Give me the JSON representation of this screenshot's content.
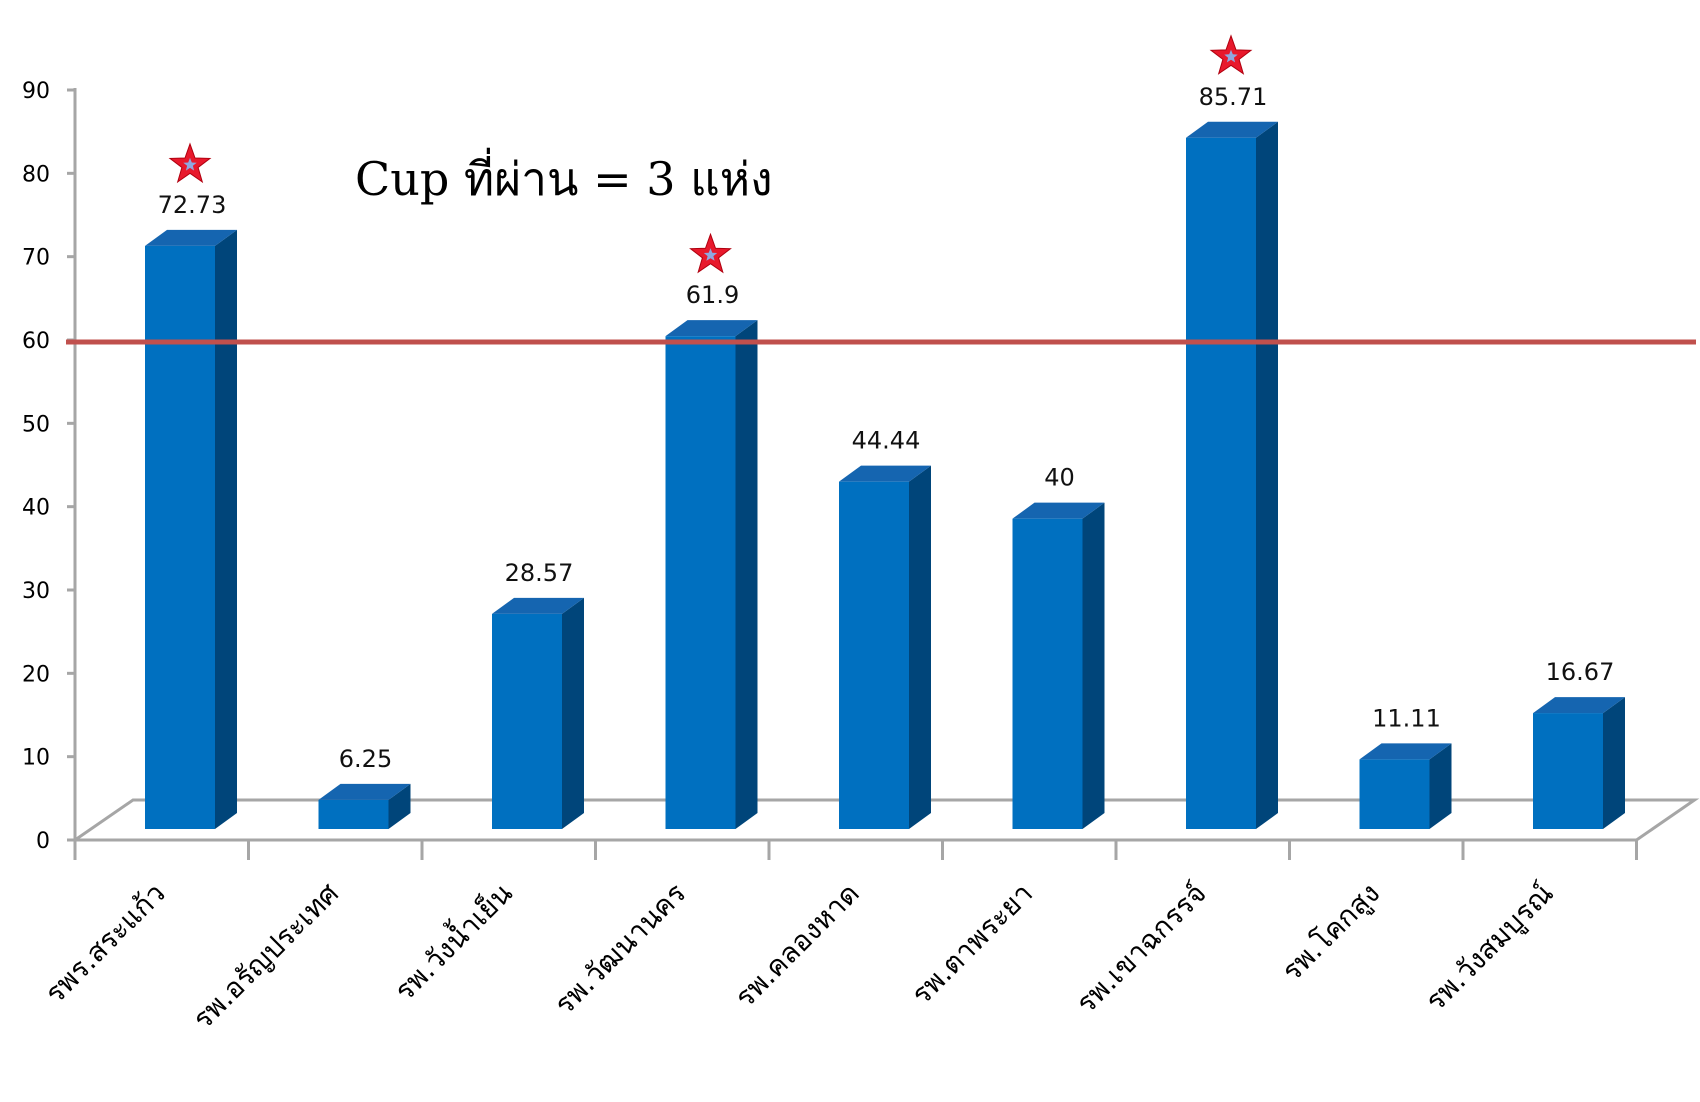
{
  "chart_data": {
    "type": "bar",
    "title": "",
    "xlabel": "",
    "ylabel": "",
    "categories": [
      "รพร.สระแก้ว",
      "รพ.อรัญประเทศ",
      "รพ.วังน้ำเย็น",
      "รพ.วัฒนานคร",
      "รพ.คลองหาด",
      "รพ.ตาพระยา",
      "รพ.เขาฉกรรจ์",
      "รพ.โคกสูง",
      "รพ.วังสมบูรณ์"
    ],
    "values": [
      72.73,
      6.25,
      28.57,
      61.9,
      44.44,
      40,
      85.71,
      11.11,
      16.67
    ],
    "data_labels": [
      "72.73",
      "6.25",
      "28.57",
      "61.9",
      "44.44",
      "40",
      "85.71",
      "11.11",
      "16.67"
    ],
    "ylim": [
      0,
      90
    ],
    "yticks": [
      "0",
      "10",
      "20",
      "30",
      "40",
      "50",
      "60",
      "70",
      "80",
      "90"
    ],
    "threshold": 60,
    "starred": [
      true,
      false,
      false,
      true,
      false,
      false,
      true,
      false,
      false
    ],
    "annotation": "Cup ที่ผ่าน = 3 แห่ง",
    "grid": false,
    "colors": {
      "bar_front": "#0070C0",
      "bar_side": "#00457A",
      "bar_top": "#1565B0",
      "threshold_line": "#C0504D",
      "star": "#E8192C",
      "axis": "#A6A6A6"
    }
  }
}
